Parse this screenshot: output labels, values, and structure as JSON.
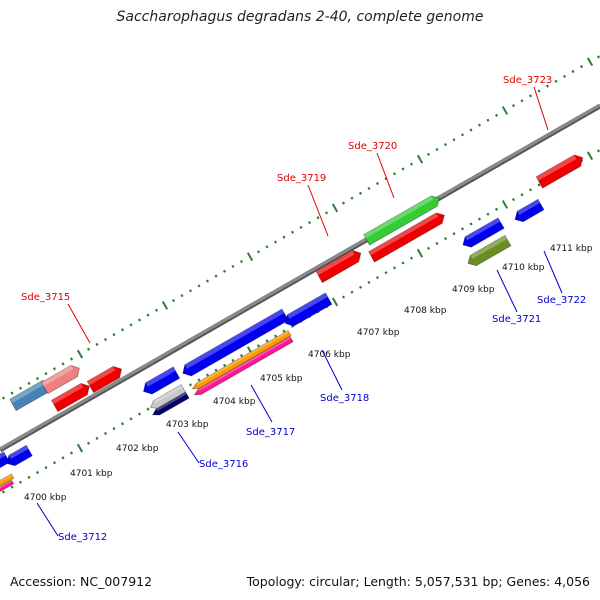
{
  "title": "Saccharophagus degradans 2-40, complete genome",
  "footer": {
    "accession": "Accession: NC_007912",
    "topology": "Topology: circular; Length: 5,057,531 bp; Genes: 4,056"
  },
  "colors": {
    "backbone": "#8a8a8a",
    "ticks": "#2e7d32",
    "forward_label": "#e00000",
    "reverse_label": "#0000cc",
    "red": "#ee0000",
    "blue": "#0000ee",
    "green": "#33cc33",
    "olive": "#6b8e23",
    "steelblue": "#4682b4",
    "pink": "#f08080",
    "orange": "#ff9900",
    "magenta": "#ff1493",
    "navy": "#000066",
    "silver": "#c8c8c8"
  },
  "scale_labels": [
    "4700 kbp",
    "4701 kbp",
    "4702 kbp",
    "4703 kbp",
    "4704 kbp",
    "4705 kbp",
    "4706 kbp",
    "4707 kbp",
    "4708 kbp",
    "4709 kbp",
    "4710 kbp",
    "4711 kbp"
  ],
  "forward_gene_labels": [
    "Sde_3715",
    "Sde_3719",
    "Sde_3720",
    "Sde_3723"
  ],
  "reverse_gene_labels": [
    "Sde_3712",
    "Sde_3716",
    "Sde_3717",
    "Sde_3718",
    "Sde_3721",
    "Sde_3722"
  ]
}
